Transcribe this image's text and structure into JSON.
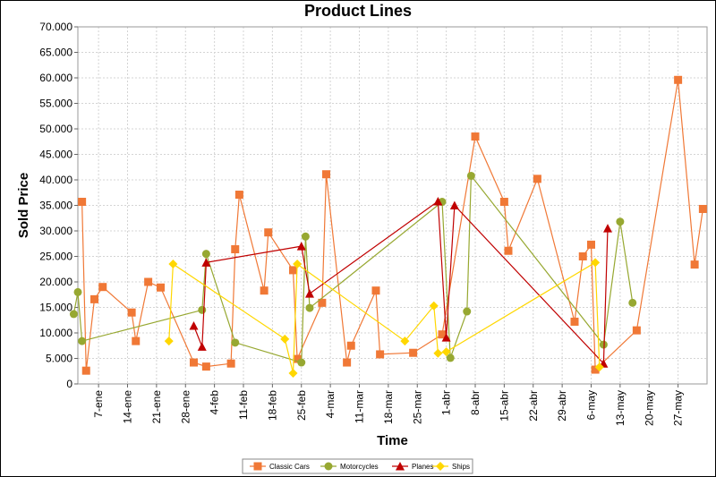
{
  "chart_data": {
    "type": "line",
    "title": "Product Lines",
    "xlabel": "Time",
    "ylabel": "Sold Price",
    "ylim": [
      0,
      70000
    ],
    "ytick_step": 5000,
    "yticklabels": [
      "0",
      "5.000",
      "10.000",
      "15.000",
      "20.000",
      "25.000",
      "30.000",
      "35.000",
      "40.000",
      "45.000",
      "50.000",
      "55.000",
      "60.000",
      "65.000",
      "70.000"
    ],
    "x_range": [
      "2005-01-02",
      "2005-06-03"
    ],
    "xticks": [
      {
        "date": "2005-01-07",
        "label": "7-ene"
      },
      {
        "date": "2005-01-14",
        "label": "14-ene"
      },
      {
        "date": "2005-01-21",
        "label": "21-ene"
      },
      {
        "date": "2005-01-28",
        "label": "28-ene"
      },
      {
        "date": "2005-02-04",
        "label": "4-feb"
      },
      {
        "date": "2005-02-11",
        "label": "11-feb"
      },
      {
        "date": "2005-02-18",
        "label": "18-feb"
      },
      {
        "date": "2005-02-25",
        "label": "25-feb"
      },
      {
        "date": "2005-03-04",
        "label": "4-mar"
      },
      {
        "date": "2005-03-11",
        "label": "11-mar"
      },
      {
        "date": "2005-03-18",
        "label": "18-mar"
      },
      {
        "date": "2005-03-25",
        "label": "25-mar"
      },
      {
        "date": "2005-04-01",
        "label": "1-abr"
      },
      {
        "date": "2005-04-08",
        "label": "8-abr"
      },
      {
        "date": "2005-04-15",
        "label": "15-abr"
      },
      {
        "date": "2005-04-22",
        "label": "22-abr"
      },
      {
        "date": "2005-04-29",
        "label": "29-abr"
      },
      {
        "date": "2005-05-06",
        "label": "6-may"
      },
      {
        "date": "2005-05-13",
        "label": "13-may"
      },
      {
        "date": "2005-05-20",
        "label": "20-may"
      },
      {
        "date": "2005-05-27",
        "label": "27-may"
      }
    ],
    "grid": true,
    "legend_position": "bottom",
    "series": [
      {
        "name": "Classic Cars",
        "color": "#f07836",
        "marker": "square",
        "points": [
          [
            "2005-01-03",
            35700
          ],
          [
            "2005-01-04",
            2600
          ],
          [
            "2005-01-06",
            16600
          ],
          [
            "2005-01-08",
            19000
          ],
          [
            "2005-01-15",
            14000
          ],
          [
            "2005-01-16",
            8400
          ],
          [
            "2005-01-19",
            20000
          ],
          [
            "2005-01-22",
            18900
          ],
          [
            "2005-01-30",
            4200
          ],
          [
            "2005-02-02",
            3400
          ],
          [
            "2005-02-08",
            4000
          ],
          [
            "2005-02-09",
            26400
          ],
          [
            "2005-02-10",
            37100
          ],
          [
            "2005-02-16",
            18300
          ],
          [
            "2005-02-17",
            29700
          ],
          [
            "2005-02-23",
            22300
          ],
          [
            "2005-02-24",
            4900
          ],
          [
            "2005-03-02",
            15900
          ],
          [
            "2005-03-03",
            41100
          ],
          [
            "2005-03-08",
            4200
          ],
          [
            "2005-03-09",
            7500
          ],
          [
            "2005-03-15",
            18300
          ],
          [
            "2005-03-16",
            5800
          ],
          [
            "2005-03-24",
            6100
          ],
          [
            "2005-03-31",
            9700
          ],
          [
            "2005-04-08",
            48500
          ],
          [
            "2005-04-15",
            35700
          ],
          [
            "2005-04-16",
            26100
          ],
          [
            "2005-04-23",
            40200
          ],
          [
            "2005-05-02",
            12200
          ],
          [
            "2005-05-04",
            25000
          ],
          [
            "2005-05-06",
            27300
          ],
          [
            "2005-05-07",
            2800
          ],
          [
            "2005-05-17",
            10500
          ],
          [
            "2005-05-27",
            59600
          ],
          [
            "2005-05-31",
            23400
          ],
          [
            "2005-06-02",
            34300
          ]
        ]
      },
      {
        "name": "Motorcycles",
        "color": "#97a831",
        "marker": "circle",
        "points": [
          [
            "2005-01-01",
            13700
          ],
          [
            "2005-01-02",
            18000
          ],
          [
            "2005-01-03",
            8400
          ],
          [
            "2005-02-01",
            14500
          ],
          [
            "2005-02-02",
            25500
          ],
          [
            "2005-02-09",
            8100
          ],
          [
            "2005-02-25",
            4200
          ],
          [
            "2005-02-26",
            28900
          ],
          [
            "2005-02-27",
            14900
          ],
          [
            "2005-03-31",
            35700
          ],
          [
            "2005-04-02",
            5100
          ],
          [
            "2005-04-06",
            14200
          ],
          [
            "2005-04-07",
            40800
          ],
          [
            "2005-05-09",
            7700
          ],
          [
            "2005-05-13",
            31800
          ],
          [
            "2005-05-16",
            15900
          ]
        ]
      },
      {
        "name": "Planes",
        "color": "#c00000",
        "marker": "triangle",
        "points": [
          [
            "2005-01-30",
            11400
          ],
          [
            "2005-02-01",
            7300
          ],
          [
            "2005-02-02",
            23800
          ],
          [
            "2005-02-25",
            27000
          ],
          [
            "2005-02-27",
            17700
          ],
          [
            "2005-03-30",
            35800
          ],
          [
            "2005-04-01",
            9100
          ],
          [
            "2005-04-03",
            35000
          ],
          [
            "2005-05-09",
            4000
          ],
          [
            "2005-05-10",
            30500
          ]
        ]
      },
      {
        "name": "Ships",
        "color": "#ffd700",
        "marker": "diamond",
        "points": [
          [
            "2005-01-24",
            8400
          ],
          [
            "2005-01-25",
            23500
          ],
          [
            "2005-02-21",
            8800
          ],
          [
            "2005-02-23",
            2100
          ],
          [
            "2005-02-24",
            23500
          ],
          [
            "2005-03-22",
            8400
          ],
          [
            "2005-03-29",
            15300
          ],
          [
            "2005-03-30",
            6000
          ],
          [
            "2005-04-01",
            6300
          ],
          [
            "2005-05-07",
            23800
          ],
          [
            "2005-05-08",
            3300
          ]
        ]
      }
    ]
  }
}
